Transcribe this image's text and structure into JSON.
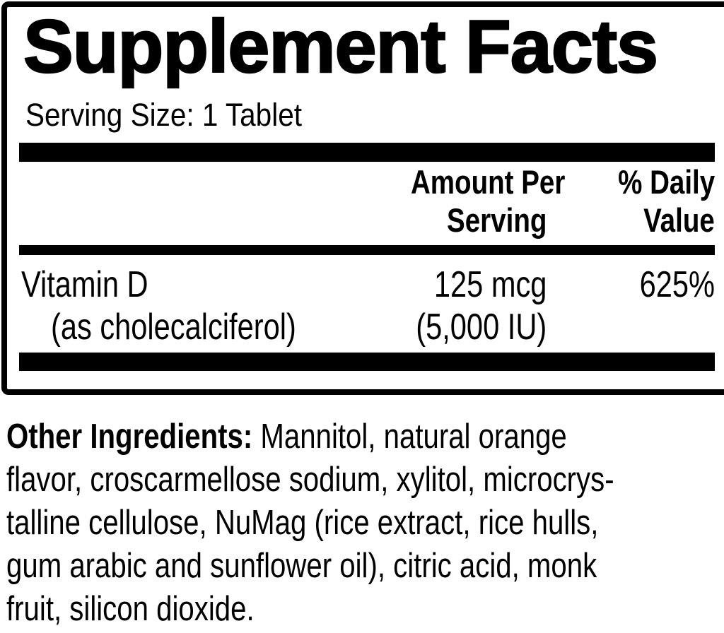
{
  "panel": {
    "title": "Supplement Facts",
    "serving_size": "Serving Size: 1 Tablet",
    "columns": {
      "amount_line1": "Amount Per",
      "amount_line2": "Serving",
      "dv_line1": "% Daily",
      "dv_line2": "Value"
    },
    "rows": [
      {
        "name": "Vitamin D",
        "name_note": "(as cholecalciferol)",
        "amount": "125 mcg",
        "amount_note": "(5,000 IU)",
        "daily_value": "625%"
      }
    ]
  },
  "other_ingredients": {
    "label": "Other Ingredients:",
    "line1_rest": " Mannitol, natural orange",
    "line2": "flavor, croscarmellose sodium, xylitol, microcrys-",
    "line3": "talline cellulose, NuMag (rice extract, rice hulls,",
    "line4": "gum arabic and sunflower oil), citric acid, monk",
    "line5": "fruit, silicon dioxide."
  },
  "colors": {
    "ink": "#000000",
    "background": "#ffffff"
  }
}
